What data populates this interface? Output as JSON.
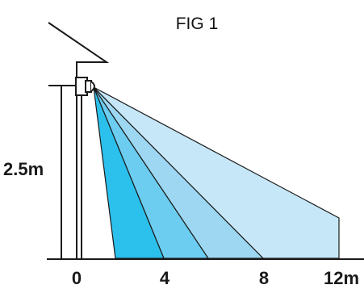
{
  "figure": {
    "title": "FIG 1",
    "mount_height_label": "2.5m",
    "distance_ticks": [
      {
        "label": "0",
        "value": 0
      },
      {
        "label": "4",
        "value": 4
      },
      {
        "label": "8",
        "value": 8
      },
      {
        "label": "12m",
        "value": 12
      }
    ]
  },
  "colors": {
    "zone_1": "#2cc0ec",
    "zone_2": "#6ccdf0",
    "zone_3": "#9dd7f2",
    "zone_4": "#c6e7f8",
    "outline": "#1a1a1a"
  }
}
